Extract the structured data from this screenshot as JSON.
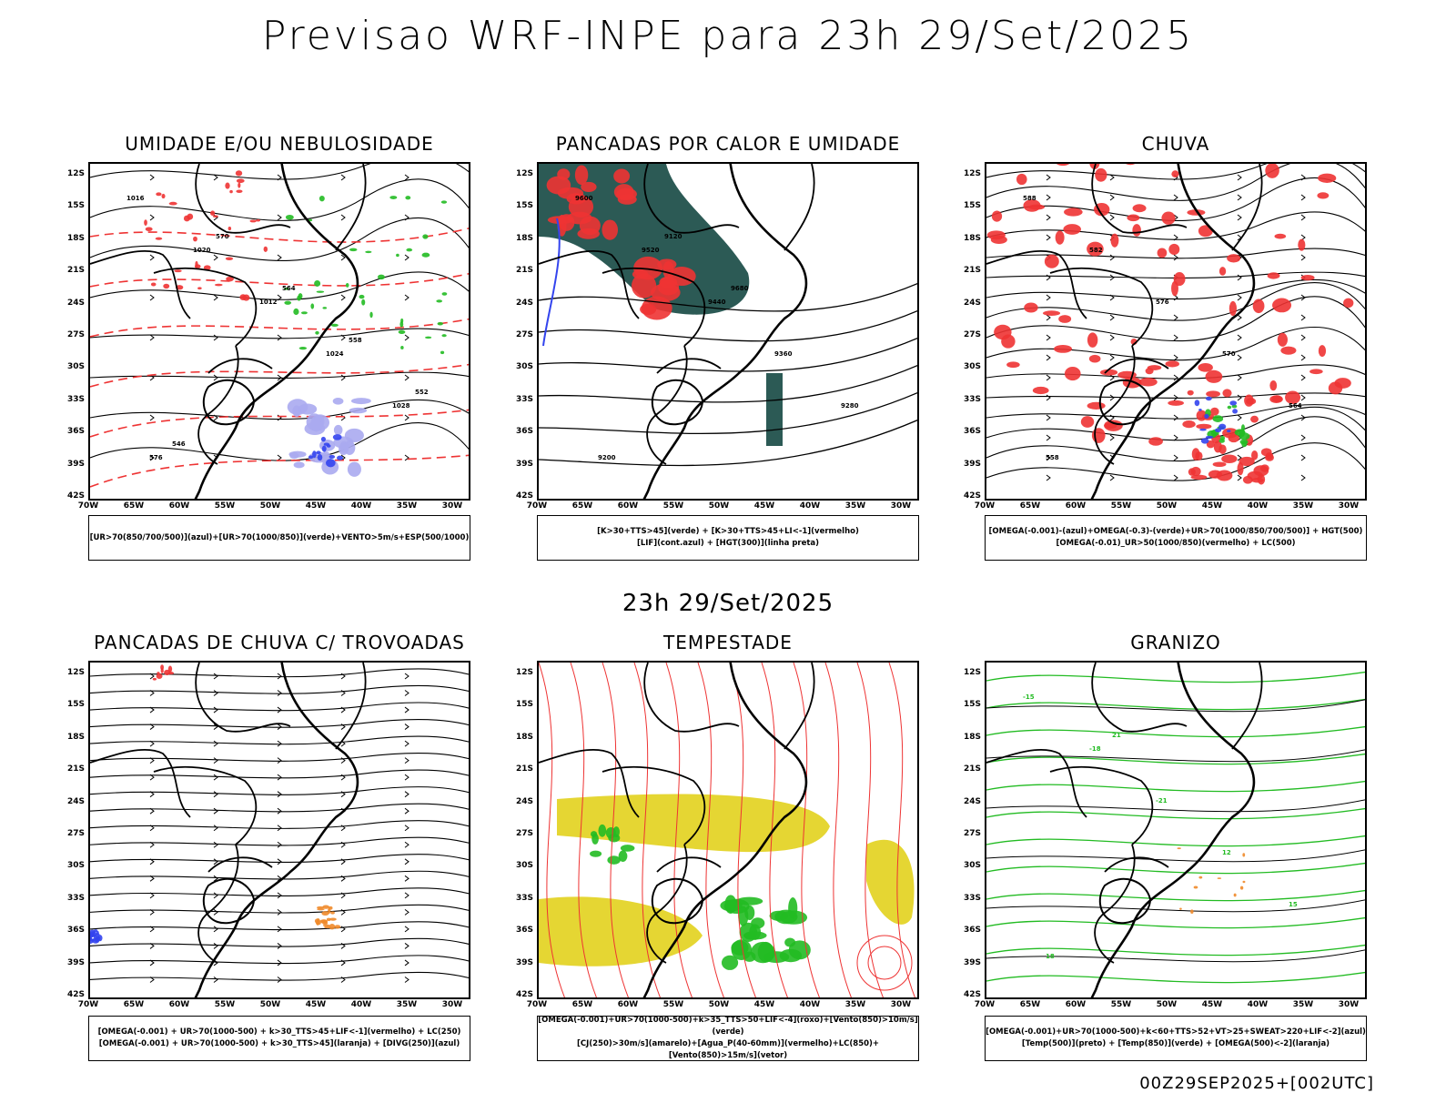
{
  "title": "Previsao WRF-INPE  para 23h 29/Set/2025",
  "mid_title": "23h 29/Set/2025",
  "footer": "00Z29SEP2025+[002UTC]",
  "y_ticks": [
    "12S",
    "15S",
    "18S",
    "21S",
    "24S",
    "27S",
    "30S",
    "33S",
    "36S",
    "39S",
    "42S"
  ],
  "x_ticks": [
    "70W",
    "65W",
    "60W",
    "55W",
    "50W",
    "45W",
    "40W",
    "35W",
    "30W"
  ],
  "panels": [
    {
      "title": "UMIDADE E/OU NEBULOSIDADE",
      "legend": [
        "[UR>70(850/700/500)](azul)+[UR>70(1000/850)](verde)+VENTO>5m/s+ESP(500/1000)"
      ]
    },
    {
      "title": "PANCADAS POR CALOR E UMIDADE",
      "legend": [
        "[K>30+TTS>45](verde) + [K>30+TTS>45+LI<-1](vermelho)",
        "[LIF](cont.azul) + [HGT(300)](linha preta)"
      ]
    },
    {
      "title": "CHUVA",
      "legend": [
        "[OMEGA(-0.001)-(azul)+OMEGA(-0.3)-(verde)+UR>70(1000/850/700/500)] + HGT(500)",
        "[OMEGA(-0.01)_UR>50(1000/850)(vermelho) + LC(500)"
      ]
    },
    {
      "title": "PANCADAS DE CHUVA C/ TROVOADAS",
      "legend": [
        "[OMEGA(-0.001) + UR>70(1000-500) + k>30_TTS>45+LIF<-1](vermelho) + LC(250)",
        "[OMEGA(-0.001) + UR>70(1000-500) + k>30_TTS>45](laranja) + [DIVG(250)](azul)"
      ]
    },
    {
      "title": "TEMPESTADE",
      "legend": [
        "[OMEGA(-0.001)+UR>70(1000-500)+k>35_TTS>50+LIF<-4](roxo)+[Vento(850)>10m/s](verde)",
        "[CJ(250)>30m/s](amarelo)+[Agua_P(40-60mm)](vermelho)+LC(850)+[Vento(850)>15m/s](vetor)"
      ]
    },
    {
      "title": "GRANIZO",
      "legend": [
        "[OMEGA(-0.001)+UR>70(1000-500)+k<60+TTS>52+VT>25+SWEAT>220+LIF<-2](azul)",
        "[Temp(500)](preto) + [Temp(850)](verde) + [OMEGA(500)<-2](laranja)"
      ]
    }
  ],
  "contour_labels": {
    "p1": [
      "1016",
      "1020",
      "1012",
      "1024",
      "1028",
      "576",
      "570",
      "564",
      "558",
      "552",
      "546"
    ],
    "p2": [
      "9600",
      "9520",
      "9440",
      "9360",
      "9280",
      "9200",
      "9120",
      "9680"
    ],
    "p3": [
      "588",
      "582",
      "576",
      "570",
      "564",
      "558"
    ],
    "p6": [
      "-15",
      "-18",
      "-21",
      "12",
      "15",
      "18",
      "21"
    ]
  },
  "colors": {
    "green": "#22bb22",
    "red": "#ee3333",
    "blue": "#3344ee",
    "lavender": "#aaaaf0",
    "yellow": "#e5d633",
    "orange": "#f08a2a",
    "teal": "#2c5a55"
  }
}
